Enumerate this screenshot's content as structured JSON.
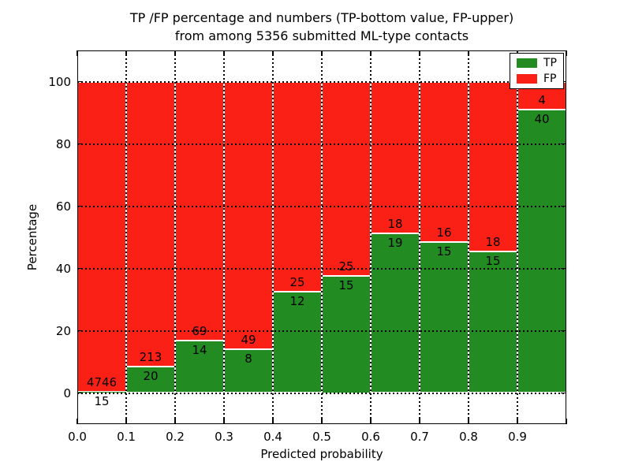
{
  "title": {
    "line1": "TP /FP percentage and numbers (TP-bottom value, FP-upper)",
    "line2": "from among 5356 submitted ML-type contacts"
  },
  "chart_data": {
    "type": "bar",
    "subtype": "stacked-percentage",
    "xlabel": "Predicted probability",
    "ylabel": "Percentage",
    "xlim": [
      0.0,
      1.0
    ],
    "ylim": [
      -10,
      110
    ],
    "x_ticks": [
      "0.0",
      "0.1",
      "0.2",
      "0.3",
      "0.4",
      "0.5",
      "0.6",
      "0.7",
      "0.8",
      "0.9"
    ],
    "y_ticks": [
      0,
      20,
      40,
      60,
      80,
      100
    ],
    "grid": "dotted",
    "series_colors": {
      "tp": "#228b22",
      "fp": "#fb2015"
    },
    "legend": {
      "position": "upper-right",
      "entries": [
        {
          "name": "TP",
          "color": "#228b22"
        },
        {
          "name": "FP",
          "color": "#fb2015"
        }
      ]
    },
    "bins": [
      {
        "range": "0.0-0.1",
        "tp": 15,
        "fp": 4746
      },
      {
        "range": "0.1-0.2",
        "tp": 20,
        "fp": 213
      },
      {
        "range": "0.2-0.3",
        "tp": 14,
        "fp": 69
      },
      {
        "range": "0.3-0.4",
        "tp": 8,
        "fp": 49
      },
      {
        "range": "0.4-0.5",
        "tp": 12,
        "fp": 25
      },
      {
        "range": "0.5-0.6",
        "tp": 15,
        "fp": 25
      },
      {
        "range": "0.6-0.7",
        "tp": 19,
        "fp": 18
      },
      {
        "range": "0.7-0.8",
        "tp": 15,
        "fp": 16
      },
      {
        "range": "0.8-0.9",
        "tp": 15,
        "fp": 18
      },
      {
        "range": "0.9-1.0",
        "tp": 40,
        "fp": 4
      }
    ]
  }
}
